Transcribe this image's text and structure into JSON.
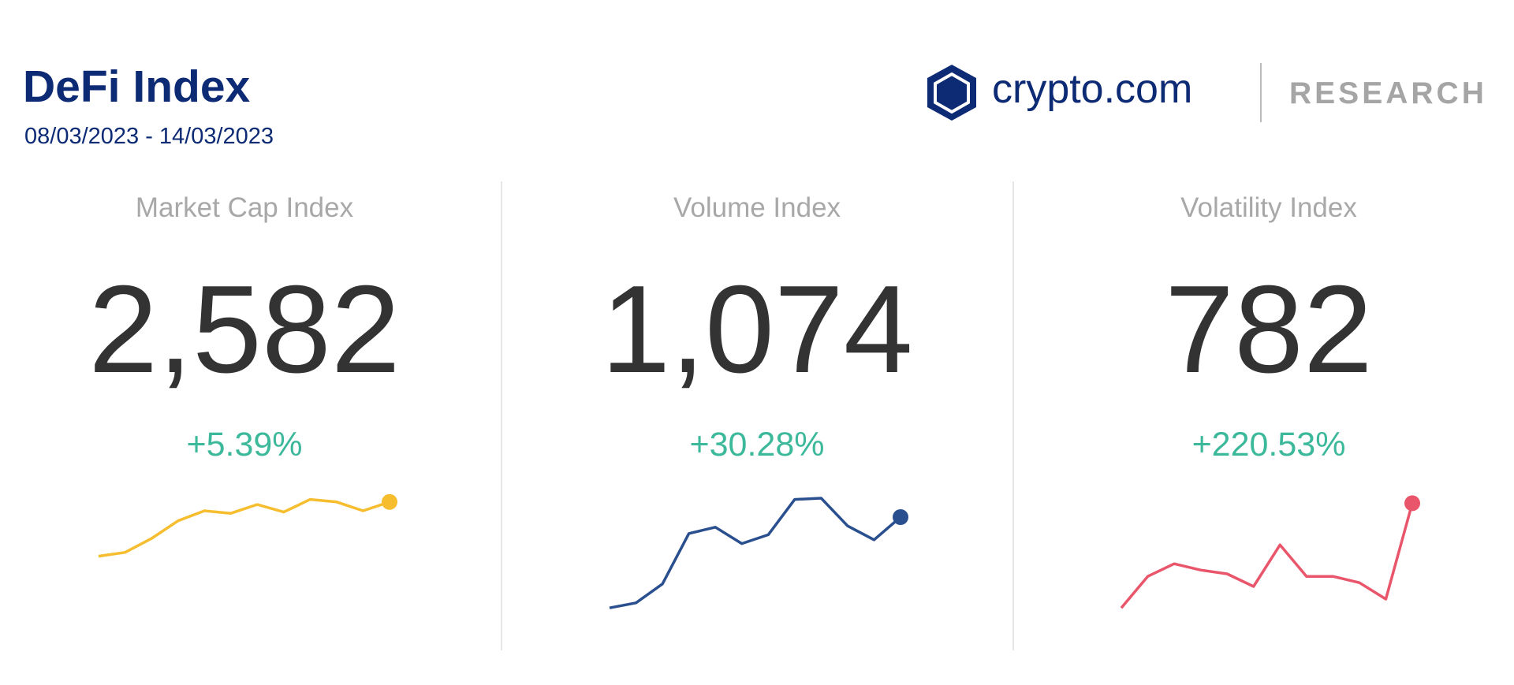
{
  "header": {
    "title": "DeFi Index",
    "date_range": "08/03/2023 - 14/03/2023"
  },
  "logo": {
    "brand": "crypto.com",
    "tag": "RESEARCH"
  },
  "cards": [
    {
      "label": "Market Cap Index",
      "value": "2,582",
      "change": "+5.39%",
      "sparkline": {
        "color": "#f6bd2f",
        "ylim": [
          0,
          100
        ],
        "values": [
          49,
          52,
          63,
          77,
          85,
          83,
          90,
          84,
          94,
          92,
          85,
          92
        ]
      }
    },
    {
      "label": "Volume Index",
      "value": "1,074",
      "change": "+30.28%",
      "sparkline": {
        "color": "#2a4f8f",
        "ylim": [
          0,
          100
        ],
        "values": [
          8,
          12,
          27,
          67,
          72,
          59,
          66,
          94,
          95,
          73,
          62,
          80
        ]
      }
    },
    {
      "label": "Volatility Index",
      "value": "782",
      "change": "+220.53%",
      "sparkline": {
        "color": "#e9566b",
        "ylim": [
          0,
          100
        ],
        "values": [
          8,
          33,
          43,
          38,
          35,
          25,
          58,
          33,
          33,
          28,
          15,
          91
        ]
      }
    }
  ]
}
